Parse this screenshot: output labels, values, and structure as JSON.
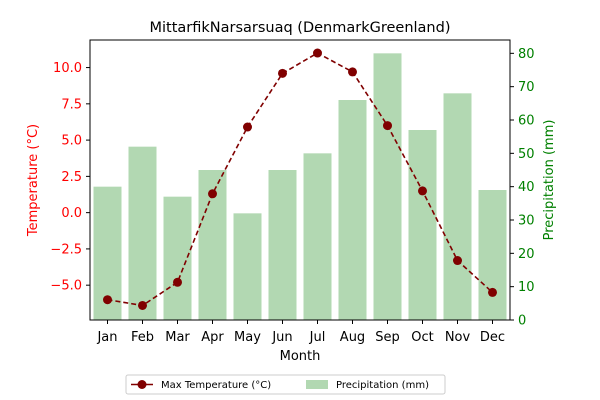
{
  "chart_data": {
    "type": "bar+line",
    "title": "MittarfikNarsarsuaq (DenmarkGreenland)",
    "xlabel": "Month",
    "ylabel_left": "Temperature (°C)",
    "ylabel_right": "Precipitation (mm)",
    "categories": [
      "Jan",
      "Feb",
      "Mar",
      "Apr",
      "May",
      "Jun",
      "Jul",
      "Aug",
      "Sep",
      "Oct",
      "Nov",
      "Dec"
    ],
    "ylim_left": [
      -7.4,
      11.9
    ],
    "ylim_right": [
      0,
      84
    ],
    "yticks_left": [
      "−5.0",
      "−2.5",
      "0.0",
      "2.5",
      "5.0",
      "7.5",
      "10.0"
    ],
    "yticks_right": [
      "0",
      "10",
      "20",
      "30",
      "40",
      "50",
      "60",
      "70",
      "80"
    ],
    "series": [
      {
        "name": "Max Temperature (°C)",
        "axis": "left",
        "kind": "line",
        "values": [
          -6.0,
          -6.4,
          -4.8,
          1.3,
          5.9,
          9.6,
          11.0,
          9.7,
          6.0,
          1.5,
          -3.3,
          -5.5
        ]
      },
      {
        "name": "Precipitation (mm)",
        "axis": "right",
        "kind": "bar",
        "values": [
          40,
          52,
          37,
          45,
          32,
          45,
          50,
          66,
          80,
          57,
          68,
          39
        ]
      }
    ],
    "legend_position": "bottom-center",
    "grid": false,
    "colors": {
      "line": "#800000",
      "bar": "#b2d8b2",
      "left_axis": "#ff0000",
      "right_axis": "#008000"
    }
  }
}
